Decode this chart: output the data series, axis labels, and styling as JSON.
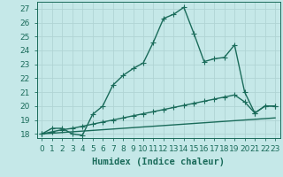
{
  "xlabel": "Humidex (Indice chaleur)",
  "background_color": "#c5e8e8",
  "grid_color": "#b0d4d4",
  "line_color": "#1a6b5a",
  "xlim": [
    -0.5,
    23.5
  ],
  "ylim": [
    17.7,
    27.5
  ],
  "xticks": [
    0,
    1,
    2,
    3,
    4,
    5,
    6,
    7,
    8,
    9,
    10,
    11,
    12,
    13,
    14,
    15,
    16,
    17,
    18,
    19,
    20,
    21,
    22,
    23
  ],
  "yticks": [
    18,
    19,
    20,
    21,
    22,
    23,
    24,
    25,
    26,
    27
  ],
  "curve1_x": [
    0,
    1,
    2,
    3,
    4,
    5,
    6,
    7,
    8,
    9,
    10,
    11,
    12,
    13,
    14,
    15,
    16,
    17,
    18,
    19,
    20,
    21,
    22,
    23
  ],
  "curve1_y": [
    18.0,
    18.4,
    18.4,
    18.0,
    17.9,
    19.4,
    20.0,
    21.5,
    22.2,
    22.7,
    23.1,
    24.6,
    26.3,
    26.6,
    27.1,
    25.2,
    23.2,
    23.4,
    23.5,
    24.4,
    21.0,
    19.5,
    20.0,
    20.0
  ],
  "curve2_x": [
    0,
    1,
    2,
    3,
    4,
    5,
    6,
    7,
    8,
    9,
    10,
    11,
    12,
    13,
    14,
    15,
    16,
    17,
    18,
    19,
    20,
    21,
    22,
    23
  ],
  "curve2_y": [
    18.0,
    18.15,
    18.3,
    18.4,
    18.55,
    18.7,
    18.85,
    19.0,
    19.15,
    19.3,
    19.45,
    19.6,
    19.75,
    19.9,
    20.05,
    20.2,
    20.35,
    20.5,
    20.65,
    20.8,
    20.3,
    19.5,
    20.0,
    20.0
  ],
  "curve3_x": [
    0,
    1,
    2,
    3,
    4,
    5,
    6,
    7,
    8,
    9,
    10,
    11,
    12,
    13,
    14,
    15,
    16,
    17,
    18,
    19,
    20,
    21,
    22,
    23
  ],
  "curve3_y": [
    18.0,
    18.05,
    18.1,
    18.15,
    18.2,
    18.25,
    18.3,
    18.35,
    18.4,
    18.45,
    18.5,
    18.55,
    18.6,
    18.65,
    18.7,
    18.75,
    18.8,
    18.85,
    18.9,
    18.95,
    19.0,
    19.05,
    19.1,
    19.15
  ],
  "linewidth": 1.0,
  "tick_fontsize": 6.5,
  "xlabel_fontsize": 7.5
}
